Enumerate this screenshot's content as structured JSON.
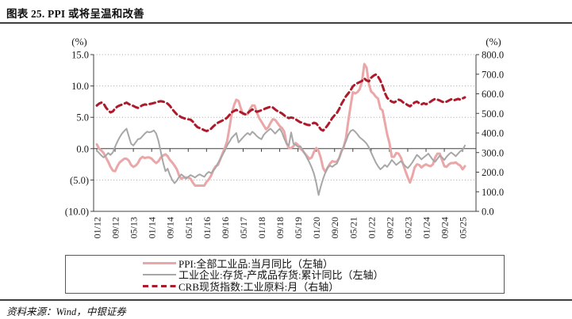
{
  "title": "图表 25. PPI 或将呈温和改善",
  "source": "资料来源：Wind，中银证券",
  "colors": {
    "ppi_line": "#EBA6A8",
    "inventory_line": "#A7A7A7",
    "crb_line": "#AD1A2B",
    "negative_tick": "#EE0000",
    "axis": "#404040",
    "grid": "#A6A6A6"
  },
  "chart_data": {
    "type": "line",
    "title": "",
    "x_start": "2012-01",
    "x_end": "2025-06",
    "x_tick_every": 8,
    "x_tick_labels": [
      "01/12",
      "09/12",
      "05/13",
      "01/14",
      "09/14",
      "05/15",
      "01/16",
      "09/16",
      "05/17",
      "01/18",
      "09/18",
      "05/19",
      "01/20",
      "09/20",
      "05/21",
      "01/22",
      "09/22",
      "05/23",
      "01/24",
      "09/24",
      "05/25"
    ],
    "grid": true,
    "legend_position": "bottom-box",
    "left_axis": {
      "label": "(%)",
      "range": [
        -10,
        15
      ],
      "ticks": [
        "15.0",
        "10.0",
        "5.0",
        "0.0",
        "(5.0)",
        "(10.0)"
      ]
    },
    "right_axis": {
      "label": "(%)",
      "range": [
        0,
        800
      ],
      "ticks": [
        "800.0",
        "700.0",
        "600.0",
        "500.0",
        "400.0",
        "300.0",
        "200.0",
        "100.0",
        "0.0"
      ]
    },
    "series": [
      {
        "name": "PPI:全部工业品:当月同比（左轴）",
        "axis": "left",
        "color": "#EBA6A8",
        "style": "solid",
        "width": 3,
        "values": [
          0.7,
          0.0,
          -0.3,
          -0.7,
          -1.4,
          -2.1,
          -2.9,
          -3.5,
          -3.6,
          -2.8,
          -2.2,
          -1.9,
          -1.6,
          -1.6,
          -1.9,
          -2.6,
          -2.9,
          -2.7,
          -2.3,
          -1.6,
          -1.3,
          -1.5,
          -1.4,
          -1.4,
          -1.6,
          -2.0,
          -2.3,
          -2.0,
          -1.4,
          -1.1,
          -0.9,
          -1.2,
          -1.8,
          -2.2,
          -2.7,
          -3.3,
          -4.3,
          -4.8,
          -4.6,
          -4.6,
          -4.6,
          -4.8,
          -5.4,
          -5.9,
          -5.9,
          -5.9,
          -5.9,
          -5.9,
          -5.3,
          -4.9,
          -4.3,
          -3.4,
          -2.8,
          -2.6,
          -1.7,
          -0.8,
          0.1,
          1.2,
          3.3,
          5.5,
          6.9,
          7.8,
          7.6,
          6.4,
          5.5,
          5.5,
          5.5,
          6.3,
          6.9,
          6.9,
          5.8,
          4.9,
          4.3,
          3.7,
          3.1,
          3.4,
          4.1,
          4.7,
          4.6,
          4.1,
          3.6,
          3.3,
          2.7,
          0.9,
          0.1,
          0.1,
          0.4,
          0.9,
          0.6,
          0.0,
          -0.3,
          -0.8,
          -1.2,
          -1.6,
          -1.4,
          -0.5,
          0.1,
          -0.4,
          -1.5,
          -3.1,
          -3.7,
          -3.0,
          -2.4,
          -2.0,
          -2.1,
          -2.1,
          -1.5,
          -0.4,
          0.3,
          1.7,
          4.4,
          6.8,
          9.0,
          8.8,
          9.0,
          9.5,
          10.7,
          13.5,
          12.9,
          10.3,
          9.1,
          8.8,
          8.3,
          8.0,
          6.4,
          6.1,
          4.2,
          2.3,
          0.9,
          -1.3,
          -1.3,
          -0.7,
          -0.8,
          -1.4,
          -2.5,
          -3.6,
          -4.6,
          -5.4,
          -4.4,
          -3.0,
          -2.5,
          -2.6,
          -3.0,
          -2.7,
          -2.5,
          -2.7,
          -2.8,
          -2.5,
          -1.4,
          -0.8,
          -0.8,
          -1.8,
          -2.8,
          -2.9,
          -2.5,
          -2.3,
          -2.3,
          -2.2,
          -2.5,
          -2.7,
          -3.3,
          -2.8
        ]
      },
      {
        "name": "工业企业:存货-产成品存货:累计同比（左轴）",
        "axis": "left",
        "color": "#A7A7A7",
        "style": "solid",
        "width": 2,
        "values": [
          -0.3,
          -0.7,
          -1.1,
          -1.4,
          -1.1,
          -0.7,
          -1.0,
          -0.6,
          0.3,
          1.1,
          1.8,
          2.4,
          2.8,
          3.2,
          2.0,
          0.8,
          0.5,
          1.0,
          1.5,
          1.6,
          2.0,
          2.4,
          2.7,
          2.6,
          2.7,
          2.9,
          2.4,
          1.2,
          -0.5,
          -2.2,
          -3.6,
          -3.2,
          -4.2,
          -5.0,
          -5.5,
          -5.1,
          -4.5,
          -4.1,
          -4.4,
          -4.8,
          -4.5,
          -4.2,
          -4.4,
          -4.6,
          -4.3,
          -4.1,
          -4.3,
          -4.5,
          -4.0,
          -3.7,
          -3.9,
          -3.5,
          -3.0,
          -2.3,
          -1.7,
          -1.0,
          -0.3,
          0.5,
          1.1,
          1.7,
          2.1,
          2.5,
          1.0,
          1.4,
          1.8,
          2.2,
          2.5,
          2.2,
          2.7,
          2.4,
          2.0,
          1.7,
          1.5,
          2.2,
          2.6,
          2.9,
          3.2,
          2.8,
          2.4,
          2.8,
          3.2,
          2.6,
          1.6,
          0.8,
          0.5,
          2.6,
          0.8,
          0.6,
          0.3,
          0.4,
          -0.2,
          -0.8,
          -1.5,
          -2.2,
          -3.0,
          -4.0,
          -5.5,
          -7.4,
          -6.0,
          -4.8,
          -3.8,
          -3.0,
          -2.7,
          -2.9,
          -2.6,
          -2.4,
          -1.5,
          -0.5,
          0.4,
          1.2,
          2.2,
          2.8,
          3.0,
          2.7,
          2.3,
          1.8,
          1.5,
          1.2,
          0.8,
          0.2,
          -0.6,
          -1.4,
          -2.2,
          -2.8,
          -3.3,
          -3.0,
          -2.6,
          -2.9,
          -2.4,
          -1.8,
          -2.2,
          -2.6,
          -2.3,
          -2.0,
          -2.4,
          -2.8,
          -3.1,
          -2.7,
          -2.2,
          -1.6,
          -1.0,
          -1.3,
          -1.7,
          -1.4,
          -1.1,
          -0.8,
          -1.3,
          -1.8,
          -2.1,
          -1.6,
          -1.1,
          -1.4,
          -1.8,
          -1.3,
          -0.9,
          -0.6,
          -0.9,
          -1.2,
          -0.8,
          -0.4,
          -0.2,
          0.5
        ]
      },
      {
        "name": "CRB现货指数:工业原料:月（右轴）",
        "axis": "right",
        "color": "#AD1A2B",
        "style": "dashed",
        "width": 3,
        "values": [
          540,
          550,
          555,
          550,
          530,
          515,
          505,
          510,
          525,
          535,
          540,
          545,
          550,
          555,
          548,
          542,
          538,
          532,
          528,
          535,
          542,
          546,
          544,
          548,
          550,
          553,
          556,
          560,
          562,
          560,
          556,
          550,
          538,
          522,
          508,
          495,
          488,
          480,
          476,
          472,
          470,
          468,
          458,
          442,
          430,
          425,
          420,
          414,
          410,
          414,
          422,
          434,
          444,
          452,
          458,
          464,
          470,
          478,
          492,
          505,
          512,
          518,
          512,
          506,
          500,
          495,
          502,
          512,
          520,
          515,
          508,
          512,
          516,
          521,
          526,
          530,
          534,
          530,
          520,
          512,
          506,
          500,
          490,
          481,
          476,
          479,
          476,
          470,
          462,
          455,
          452,
          446,
          442,
          440,
          446,
          452,
          448,
          434,
          418,
          412,
          425,
          440,
          458,
          476,
          490,
          502,
          522,
          548,
          568,
          588,
          602,
          618,
          638,
          648,
          654,
          660,
          666,
          678,
          668,
          664,
          682,
          692,
          698,
          688,
          668,
          640,
          605,
          580,
          568,
          560,
          556,
          562,
          570,
          566,
          556,
          550,
          542,
          536,
          546,
          556,
          560,
          552,
          546,
          552,
          547,
          552,
          560,
          568,
          574,
          570,
          566,
          560,
          556,
          560,
          566,
          572,
          566,
          570,
          574,
          570,
          576,
          582
        ]
      }
    ]
  }
}
